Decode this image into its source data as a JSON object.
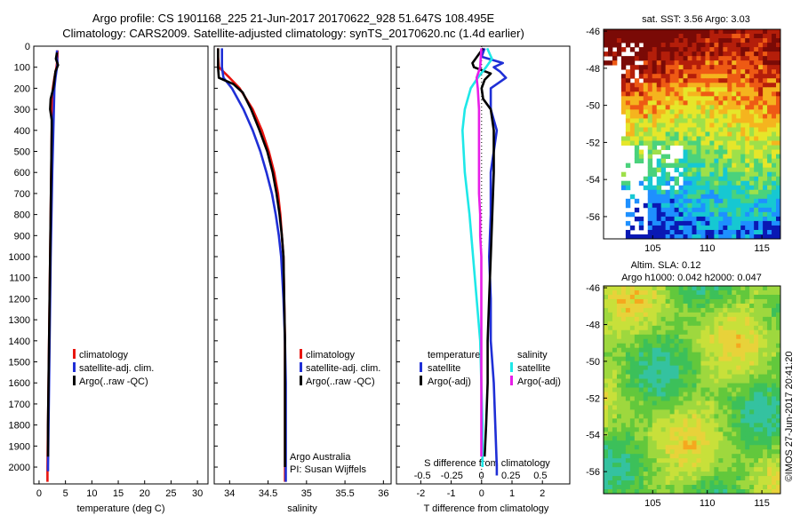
{
  "chart_data": {
    "title": {
      "line1": "Argo profile: CS 1901168_225 21-Jun-2017 20170622_928 51.647S 108.495E",
      "line2": "Climatology: CARS2009. Satellite-adjusted climatology: synTS_20170620.nc (1.4d earlier)"
    },
    "depth_ticks": [
      "0",
      "100",
      "200",
      "300",
      "400",
      "500",
      "600",
      "700",
      "800",
      "900",
      "1000",
      "1100",
      "1200",
      "1300",
      "1400",
      "1500",
      "1600",
      "1700",
      "1800",
      "1900",
      "2000"
    ],
    "depth_range": [
      0,
      2080
    ],
    "panels": [
      {
        "type": "line",
        "id": "temperature",
        "xlabel": "temperature (deg C)",
        "xlim": [
          -1,
          32
        ],
        "xticks": [
          "0",
          "5",
          "10",
          "15",
          "20",
          "25",
          "30"
        ],
        "xtick_values": [
          0,
          5,
          10,
          15,
          20,
          25,
          30
        ],
        "legend": [
          "climatology",
          "satellite-adj. clim.",
          "Argo(..raw -QC)"
        ],
        "series": [
          {
            "name": "climatology",
            "color": "#e8150f",
            "depth": [
              20,
              50,
              80,
              100,
              150,
              200,
              300,
              400,
              600,
              800,
              1000,
              1200,
              1400,
              1600,
              1800,
              2000,
              2070
            ],
            "value": [
              3.5,
              3.5,
              3.4,
              3.3,
              2.9,
              2.6,
              2.5,
              2.4,
              2.3,
              2.2,
              2.1,
              2.0,
              1.9,
              1.8,
              1.7,
              1.6,
              1.6
            ]
          },
          {
            "name": "satellite-adj. clim.",
            "color": "#1f2fd6",
            "depth": [
              20,
              50,
              80,
              100,
              150,
              200,
              300,
              400,
              600,
              800,
              1000,
              1200,
              1400,
              1600,
              1800,
              2000,
              2020
            ],
            "value": [
              3.4,
              3.4,
              3.5,
              3.4,
              3.1,
              2.9,
              2.8,
              2.7,
              2.5,
              2.35,
              2.2,
              2.1,
              2.0,
              1.9,
              1.8,
              1.7,
              1.7
            ]
          },
          {
            "name": "Argo(..raw -QC)",
            "color": "#000000",
            "depth": [
              30,
              60,
              90,
              120,
              160,
              200,
              250,
              300,
              350,
              400,
              600,
              800,
              1000,
              1200,
              1400,
              1600,
              1800,
              1950
            ],
            "value": [
              3.4,
              3.2,
              3.6,
              3.1,
              2.9,
              2.7,
              2.2,
              2.1,
              2.4,
              2.4,
              2.3,
              2.2,
              2.1,
              2.0,
              1.9,
              1.8,
              1.7,
              1.7
            ]
          }
        ]
      },
      {
        "type": "line",
        "id": "salinity",
        "xlabel": "salinity",
        "xlim": [
          33.8,
          36.1
        ],
        "xticks": [
          "34",
          "34.5",
          "35",
          "35.5",
          "36"
        ],
        "xtick_values": [
          34,
          34.5,
          35,
          35.5,
          36
        ],
        "legend": [
          "climatology",
          "satellite-adj. clim.",
          "Argo(..raw -QC)"
        ],
        "annotation": [
          "Argo Australia",
          "PI: Susan Wijffels"
        ],
        "series": [
          {
            "name": "climatology",
            "color": "#e8150f",
            "depth": [
              10,
              50,
              100,
              150,
              200,
              300,
              400,
              500,
              600,
              700,
              800,
              900,
              1000,
              1200,
              1400,
              1600,
              1800,
              2000,
              2070
            ],
            "value": [
              33.85,
              33.85,
              33.86,
              34.0,
              34.13,
              34.3,
              34.42,
              34.51,
              34.58,
              34.63,
              34.66,
              34.68,
              34.7,
              34.71,
              34.72,
              34.72,
              34.72,
              34.72,
              34.72
            ]
          },
          {
            "name": "satellite-adj. clim.",
            "color": "#1f2fd6",
            "depth": [
              10,
              50,
              100,
              150,
              200,
              300,
              400,
              500,
              600,
              700,
              800,
              900,
              1000,
              1200,
              1400,
              1600,
              1800,
              2000,
              2070
            ],
            "value": [
              33.9,
              33.9,
              33.9,
              33.92,
              34.03,
              34.18,
              34.3,
              34.4,
              34.48,
              34.55,
              34.6,
              34.64,
              34.67,
              34.7,
              34.72,
              34.73,
              34.73,
              34.73,
              34.73
            ]
          },
          {
            "name": "Argo(..raw -QC)",
            "color": "#000000",
            "depth": [
              10,
              50,
              100,
              150,
              180,
              220,
              300,
              400,
              500,
              600,
              700,
              800,
              900,
              1000,
              1200,
              1400,
              1600,
              1800,
              2000
            ],
            "value": [
              33.85,
              33.85,
              33.85,
              33.86,
              34.05,
              34.17,
              34.28,
              34.39,
              34.49,
              34.56,
              34.61,
              34.65,
              34.68,
              34.7,
              34.71,
              34.72,
              34.72,
              34.72,
              34.72
            ]
          }
        ]
      },
      {
        "type": "line",
        "id": "difference",
        "xlabel": "T difference from climatology",
        "xlim": [
          -2.8,
          2.9
        ],
        "xticks": [
          "-2",
          "-1",
          "0",
          "1",
          "2"
        ],
        "xtick_values": [
          -2,
          -1,
          0,
          1,
          2
        ],
        "xlabel_top": "S difference from climatology",
        "xticks_top": [
          "-0.5",
          "-0.25",
          "0",
          "0.25",
          "0.5"
        ],
        "xtick_top_values": [
          -0.5,
          -0.25,
          0,
          0.25,
          0.5
        ],
        "legend_left_title": "temperature",
        "legend_left": [
          "satellite",
          "Argo(-adj)"
        ],
        "legend_right_title": "salinity",
        "legend_right": [
          "satellite",
          "Argo(-adj)"
        ],
        "series": [
          {
            "name": "temperature satellite",
            "color": "#1f2fd6",
            "axis": "T",
            "depth": [
              10,
              50,
              80,
              100,
              120,
              150,
              200,
              300,
              400,
              600,
              800,
              1000,
              1200,
              1400,
              1600,
              1800,
              2000,
              2040
            ],
            "value": [
              0.1,
              0.0,
              0.7,
              0.4,
              0.6,
              0.8,
              0.3,
              0.3,
              0.5,
              0.3,
              0.3,
              0.25,
              0.3,
              0.3,
              0.4,
              0.45,
              0.5,
              0.5
            ]
          },
          {
            "name": "temperature Argo(-adj)",
            "color": "#000000",
            "axis": "T",
            "depth": [
              10,
              80,
              100,
              130,
              160,
              200,
              250,
              300,
              400,
              600,
              800,
              1000,
              1200,
              1400,
              1600,
              1800,
              1950
            ],
            "value": [
              0.05,
              -0.3,
              -0.25,
              0.3,
              0.1,
              0.0,
              0.05,
              0.3,
              0.4,
              0.4,
              0.35,
              0.3,
              0.25,
              0.2,
              0.2,
              0.15,
              0.1
            ]
          },
          {
            "name": "salinity satellite",
            "color": "#1ee8e8",
            "axis": "S",
            "depth": [
              10,
              60,
              100,
              150,
              200,
              300,
              400,
              500,
              600,
              800,
              1000,
              1200,
              1400,
              1600,
              1800,
              2000
            ],
            "value": [
              0.05,
              0.09,
              0.04,
              -0.03,
              -0.09,
              -0.14,
              -0.16,
              -0.15,
              -0.14,
              -0.1,
              -0.07,
              -0.04,
              -0.01,
              0.0,
              0.01,
              0.01
            ]
          },
          {
            "name": "salinity Argo(-adj)",
            "color": "#e81ee8",
            "axis": "S",
            "depth": [
              10,
              100,
              150,
              200,
              300,
              400,
              500,
              600,
              700,
              800,
              900,
              1000,
              1200,
              1400,
              1600,
              1800,
              1950
            ],
            "value": [
              0.0,
              -0.01,
              -0.04,
              -0.03,
              -0.02,
              -0.02,
              -0.02,
              -0.02,
              -0.02,
              -0.01,
              -0.01,
              0.0,
              0.0,
              0.0,
              0.0,
              0.0,
              0.0
            ]
          }
        ]
      },
      {
        "type": "heatmap",
        "id": "sst-map",
        "title": "sat. SST: 3.56 Argo: 3.03",
        "xticks": [
          "105",
          "110",
          "115"
        ],
        "xtick_values": [
          105,
          110,
          115
        ],
        "yticks": [
          "-46",
          "-48",
          "-50",
          "-52",
          "-54",
          "-56"
        ],
        "ytick_values": [
          -46,
          -48,
          -50,
          -52,
          -54,
          -56
        ],
        "xlim": [
          100.5,
          116.7
        ],
        "ylim": [
          -57.2,
          -45.9
        ],
        "colormap": [
          "#0a18b4",
          "#1e90ff",
          "#16c8d2",
          "#4ad27c",
          "#9ee04a",
          "#e6e62a",
          "#f5b41e",
          "#ee5a14",
          "#b41e0a",
          "#7a0a06"
        ]
      },
      {
        "type": "heatmap",
        "id": "sla-map",
        "title": "Altim. SLA: 0.12",
        "subtitle": "Argo h1000: 0.042 h2000: 0.047",
        "xticks": [
          "105",
          "110",
          "115"
        ],
        "xtick_values": [
          105,
          110,
          115
        ],
        "yticks": [
          "-46",
          "-48",
          "-50",
          "-52",
          "-54",
          "-56"
        ],
        "ytick_values": [
          -46,
          -48,
          -50,
          -52,
          -54,
          -56
        ],
        "xlim": [
          100.5,
          116.7
        ],
        "ylim": [
          -57.2,
          -45.9
        ],
        "colormap": [
          "#34c2a0",
          "#3cc05a",
          "#62c83c",
          "#9ed83e",
          "#c8e03a",
          "#e8d23a",
          "#f5a81e"
        ]
      }
    ],
    "side_label": "©IMOS 27-Jun-2017 20:41:20"
  }
}
